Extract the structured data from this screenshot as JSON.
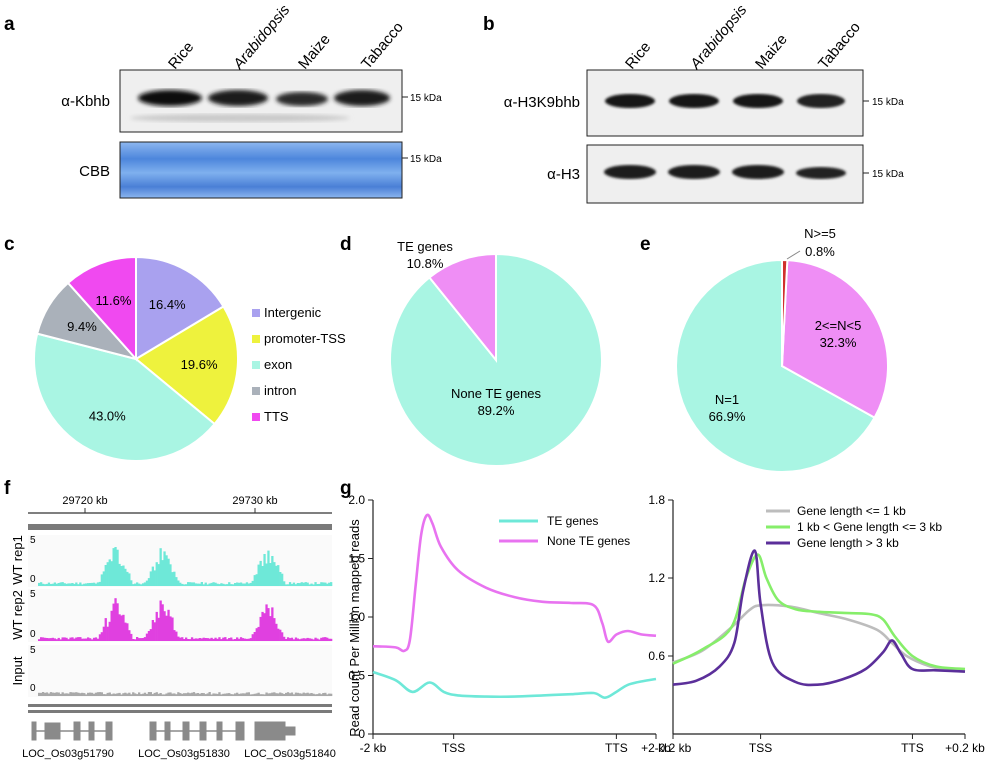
{
  "panels": {
    "a": "a",
    "b": "b",
    "c": "c",
    "d": "d",
    "e": "e",
    "f": "f",
    "g": "g"
  },
  "colors": {
    "teal": "#6ee8d8",
    "pink": "#e873f0",
    "pie_teal": "#a9f5e3",
    "pie_pink": "#ef8ef5",
    "lavender": "#a9a1ef",
    "yellow": "#eef23d",
    "gray": "#aab1ba",
    "magenta": "#f049f0",
    "green": "#86ee6a",
    "purple": "#5b2f9a",
    "lightgray": "#bdbdbd",
    "cbb": "#5f9ae6",
    "red": "#d0312d"
  },
  "panel_a": {
    "lanes": [
      "Rice",
      "Arabidopsis",
      "Maize",
      "Tabacco"
    ],
    "row1_label": "α-Kbhb",
    "row2_label": "CBB",
    "marker1": "15 kDa",
    "marker2": "15 kDa"
  },
  "panel_b": {
    "lanes": [
      "Rice",
      "Arabidopsis",
      "Maize",
      "Tabacco"
    ],
    "row1_label": "α-H3K9bhb",
    "row2_label": "α-H3",
    "marker1": "15 kDa",
    "marker2": "15 kDa"
  },
  "chart_data": [
    {
      "id": "c",
      "type": "pie",
      "labels": [
        "Intergenic",
        "promoter-TSS",
        "exon",
        "intron",
        "TTS"
      ],
      "values": [
        16.4,
        19.6,
        43.0,
        9.4,
        11.6
      ],
      "display": [
        "16.4%",
        "19.6%",
        "43.0%",
        "9.4%",
        "11.6%"
      ],
      "colors": [
        "#a9a1ef",
        "#eef23d",
        "#a9f5e3",
        "#aab1ba",
        "#f049f0"
      ],
      "legend": "right"
    },
    {
      "id": "d",
      "type": "pie",
      "labels": [
        "None TE genes",
        "TE genes"
      ],
      "values": [
        89.2,
        10.8
      ],
      "display": [
        "89.2%",
        "10.8%"
      ],
      "colors": [
        "#a9f5e3",
        "#ef8ef5"
      ]
    },
    {
      "id": "e",
      "type": "pie",
      "labels": [
        "N=1",
        "2<=N<5",
        "N>=5"
      ],
      "values": [
        66.9,
        32.3,
        0.8
      ],
      "display": [
        "66.9%",
        "32.3%",
        "0.8%"
      ],
      "colors": [
        "#a9f5e3",
        "#ef8ef5",
        "#d0312d"
      ]
    },
    {
      "id": "f",
      "type": "area",
      "xlabel": "",
      "coords": [
        "29720 kb",
        "29730 kb"
      ],
      "tracks": [
        {
          "name": "WT rep1",
          "scale_max": "5",
          "scale_min": "0",
          "color": "#6ee8d8",
          "peaks": [
            0.26,
            0.42,
            0.78
          ]
        },
        {
          "name": "WT rep2",
          "scale_max": "5",
          "scale_min": "0",
          "color": "#e040e0",
          "peaks": [
            0.26,
            0.42,
            0.78
          ]
        },
        {
          "name": "Input",
          "scale_max": "5",
          "scale_min": "0",
          "color": "#a9a9a9",
          "peaks": []
        }
      ],
      "genes": [
        "LOC_Os03g51790",
        "LOC_Os03g51830",
        "LOC_Os03g51840"
      ]
    },
    {
      "id": "g1",
      "type": "line",
      "ylabel": "Read count Per Million mapped reads",
      "ylim": [
        0,
        2.0
      ],
      "yticks": [
        "0",
        "0.5",
        "1.0",
        "1.5",
        "2.0"
      ],
      "xticks": [
        "-2 kb",
        "TSS",
        "TTS",
        "+2 kb"
      ],
      "series": [
        {
          "name": "TE genes",
          "color": "#6ee8d8",
          "x": [
            0,
            0.08,
            0.14,
            0.2,
            0.25,
            0.3,
            0.4,
            0.5,
            0.6,
            0.7,
            0.78,
            0.82,
            0.86,
            0.9,
            0.95,
            1.0
          ],
          "y": [
            0.53,
            0.46,
            0.36,
            0.44,
            0.36,
            0.33,
            0.32,
            0.32,
            0.33,
            0.34,
            0.35,
            0.31,
            0.36,
            0.42,
            0.45,
            0.47
          ]
        },
        {
          "name": "None TE genes",
          "color": "#e873f0",
          "x": [
            0,
            0.08,
            0.11,
            0.13,
            0.15,
            0.17,
            0.19,
            0.21,
            0.24,
            0.3,
            0.4,
            0.5,
            0.6,
            0.7,
            0.78,
            0.81,
            0.83,
            0.86,
            0.9,
            0.95,
            1.0
          ],
          "y": [
            0.75,
            0.74,
            0.71,
            0.8,
            1.25,
            1.7,
            1.87,
            1.8,
            1.6,
            1.4,
            1.25,
            1.17,
            1.13,
            1.12,
            1.1,
            0.95,
            0.79,
            0.85,
            0.88,
            0.85,
            0.84
          ]
        }
      ]
    },
    {
      "id": "g2",
      "type": "line",
      "ylim": [
        0,
        1.8
      ],
      "yticks": [
        "0.6",
        "1.2",
        "1.8"
      ],
      "xticks": [
        "-0.2 kb",
        "TSS",
        "TTS",
        "+0.2 kb"
      ],
      "series": [
        {
          "name": "Gene length <= 1 kb",
          "color": "#bdbdbd",
          "x": [
            0,
            0.1,
            0.2,
            0.26,
            0.3,
            0.4,
            0.5,
            0.6,
            0.7,
            0.75,
            0.8,
            0.88,
            0.95,
            1.0
          ],
          "y": [
            0.55,
            0.64,
            0.82,
            0.95,
            0.99,
            0.98,
            0.93,
            0.88,
            0.8,
            0.7,
            0.6,
            0.52,
            0.49,
            0.48
          ]
        },
        {
          "name": "1 kb < Gene length <= 3 kb",
          "color": "#86ee6a",
          "x": [
            0,
            0.1,
            0.2,
            0.25,
            0.29,
            0.32,
            0.36,
            0.42,
            0.5,
            0.6,
            0.68,
            0.72,
            0.76,
            0.82,
            0.9,
            1.0
          ],
          "y": [
            0.54,
            0.65,
            0.82,
            1.2,
            1.38,
            1.2,
            1.03,
            0.96,
            0.94,
            0.93,
            0.92,
            0.88,
            0.75,
            0.6,
            0.52,
            0.5
          ]
        },
        {
          "name": "Gene length > 3 kb",
          "color": "#5b2f9a",
          "x": [
            0,
            0.08,
            0.16,
            0.21,
            0.24,
            0.28,
            0.3,
            0.34,
            0.42,
            0.5,
            0.58,
            0.66,
            0.72,
            0.75,
            0.78,
            0.82,
            0.9,
            1.0
          ],
          "y": [
            0.38,
            0.41,
            0.52,
            0.7,
            1.1,
            1.41,
            1.0,
            0.55,
            0.4,
            0.38,
            0.42,
            0.5,
            0.63,
            0.72,
            0.62,
            0.5,
            0.49,
            0.48
          ]
        }
      ]
    }
  ]
}
